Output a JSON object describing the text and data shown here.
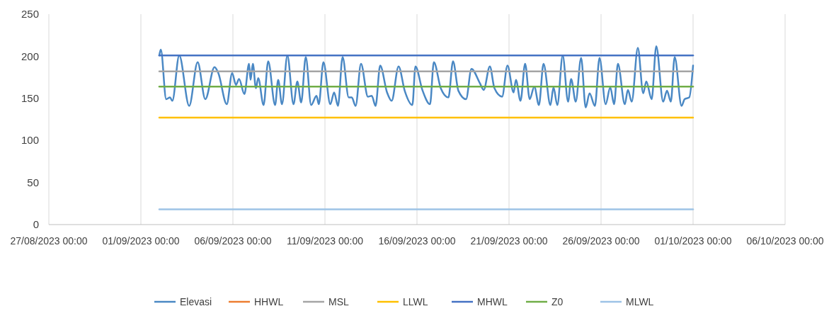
{
  "chart_data": {
    "type": "line",
    "xlim": [
      "2023-08-27",
      "2023-10-06"
    ],
    "xticks": [
      {
        "value": "2023-08-27",
        "label": "27/08/2023 00:00"
      },
      {
        "value": "2023-09-01",
        "label": "01/09/2023 00:00"
      },
      {
        "value": "2023-09-06",
        "label": "06/09/2023 00:00"
      },
      {
        "value": "2023-09-11",
        "label": "11/09/2023 00:00"
      },
      {
        "value": "2023-09-16",
        "label": "16/09/2023 00:00"
      },
      {
        "value": "2023-09-21",
        "label": "21/09/2023 00:00"
      },
      {
        "value": "2023-09-26",
        "label": "26/09/2023 00:00"
      },
      {
        "value": "2023-10-01",
        "label": "01/10/2023 00:00"
      },
      {
        "value": "2023-10-06",
        "label": "06/10/2023 00:00"
      }
    ],
    "ylim": [
      0,
      250
    ],
    "yticks": [
      0,
      50,
      100,
      150,
      200,
      250
    ],
    "grid": "x",
    "legend": "bottom",
    "series": [
      {
        "name": "Elevasi",
        "color": "#4a88c4",
        "x": [
          "2023-09-02T00:00",
          "2023-09-02T02:00",
          "2023-09-02T09:00",
          "2023-09-02T14:00",
          "2023-09-02T17:00",
          "2023-09-03T02:00",
          "2023-09-03T15:00",
          "2023-09-04T02:00",
          "2023-09-04T12:00",
          "2023-09-05T00:00",
          "2023-09-05T05:00",
          "2023-09-05T16:00",
          "2023-09-05T23:00",
          "2023-09-06T04:00",
          "2023-09-06T08:00",
          "2023-09-06T15:00",
          "2023-09-06T21:00",
          "2023-09-06T23:00",
          "2023-09-07T02:00",
          "2023-09-07T06:00",
          "2023-09-07T09:00",
          "2023-09-07T16:00",
          "2023-09-07T22:00",
          "2023-09-08T07:00",
          "2023-09-08T11:00",
          "2023-09-08T16:00",
          "2023-09-08T23:00",
          "2023-09-09T07:00",
          "2023-09-09T12:00",
          "2023-09-09T17:00",
          "2023-09-09T23:00",
          "2023-09-10T06:00",
          "2023-09-10T13:00",
          "2023-09-10T16:00",
          "2023-09-10T22:00",
          "2023-09-11T07:00",
          "2023-09-11T12:00",
          "2023-09-11T17:00",
          "2023-09-11T23:00",
          "2023-09-12T07:00",
          "2023-09-12T11:00",
          "2023-09-12T16:00",
          "2023-09-12T23:00",
          "2023-09-13T08:00",
          "2023-09-13T13:00",
          "2023-09-13T18:00",
          "2023-09-14T00:00",
          "2023-09-14T09:00",
          "2023-09-14T15:00",
          "2023-09-15T00:00",
          "2023-09-15T08:00",
          "2023-09-15T18:00",
          "2023-09-15T22:00",
          "2023-09-16T07:00",
          "2023-09-16T17:00",
          "2023-09-16T22:00",
          "2023-09-17T07:00",
          "2023-09-17T17:00",
          "2023-09-17T23:00",
          "2023-09-18T06:00",
          "2023-09-18T16:00",
          "2023-09-18T23:00",
          "2023-09-19T10:00",
          "2023-09-19T15:00",
          "2023-09-19T23:00",
          "2023-09-20T05:00",
          "2023-09-20T15:00",
          "2023-09-20T22:00",
          "2023-09-21T06:00",
          "2023-09-21T09:00",
          "2023-09-21T15:00",
          "2023-09-21T21:00",
          "2023-09-22T03:00",
          "2023-09-22T09:00",
          "2023-09-22T15:00",
          "2023-09-22T21:00",
          "2023-09-23T06:00",
          "2023-09-23T10:00",
          "2023-09-23T15:00",
          "2023-09-23T22:00",
          "2023-09-24T05:00",
          "2023-09-24T09:00",
          "2023-09-24T15:00",
          "2023-09-24T22:00",
          "2023-09-25T04:00",
          "2023-09-25T09:00",
          "2023-09-25T16:00",
          "2023-09-25T22:00",
          "2023-09-26T06:00",
          "2023-09-26T12:00",
          "2023-09-26T17:00",
          "2023-09-26T22:00",
          "2023-09-27T07:00",
          "2023-09-27T11:00",
          "2023-09-27T16:00",
          "2023-09-28T00:00",
          "2023-09-28T07:00",
          "2023-09-28T11:00",
          "2023-09-28T18:00",
          "2023-09-29T00:00",
          "2023-09-29T09:00",
          "2023-09-29T14:00",
          "2023-09-29T19:00",
          "2023-09-30T00:00",
          "2023-09-30T09:00",
          "2023-09-30T13:00",
          "2023-09-30T19:00",
          "2023-10-01T00:00"
        ],
        "values": [
          201,
          208,
          149,
          151,
          147,
          201,
          141,
          193,
          149,
          187,
          180,
          143,
          180,
          166,
          173,
          155,
          191,
          172,
          191,
          162,
          174,
          142,
          194,
          142,
          172,
          143,
          201,
          143,
          170,
          145,
          199,
          142,
          153,
          143,
          193,
          143,
          157,
          141,
          199,
          151,
          151,
          141,
          191,
          152,
          153,
          141,
          189,
          157,
          147,
          188,
          159,
          142,
          188,
          160,
          143,
          193,
          162,
          151,
          194,
          159,
          149,
          185,
          168,
          160,
          188,
          162,
          152,
          189,
          157,
          172,
          147,
          191,
          149,
          164,
          142,
          191,
          142,
          163,
          142,
          201,
          146,
          173,
          146,
          198,
          139,
          156,
          141,
          198,
          143,
          163,
          143,
          191,
          143,
          160,
          146,
          210,
          156,
          170,
          149,
          212,
          146,
          159,
          146,
          199,
          141,
          149,
          151,
          189
        ]
      },
      {
        "name": "HHWL",
        "color": "#ed7d31"
      },
      {
        "name": "MSL",
        "color": "#a5a5a5",
        "x": [
          "2023-09-02T00:00",
          "2023-10-01T00:00"
        ],
        "values": [
          182,
          182
        ]
      },
      {
        "name": "LLWL",
        "color": "#ffc000",
        "x": [
          "2023-09-02T00:00",
          "2023-10-01T00:00"
        ],
        "values": [
          127,
          127
        ]
      },
      {
        "name": "MHWL",
        "color": "#4472c4",
        "x": [
          "2023-09-02T00:00",
          "2023-10-01T00:00"
        ],
        "values": [
          201,
          201
        ]
      },
      {
        "name": "Z0",
        "color": "#70ad47",
        "x": [
          "2023-09-02T00:00",
          "2023-10-01T00:00"
        ],
        "values": [
          164,
          164
        ]
      },
      {
        "name": "MLWL",
        "color": "#9dc3e6",
        "x": [
          "2023-09-02T00:00",
          "2023-10-01T00:00"
        ],
        "values": [
          18,
          18
        ]
      }
    ]
  }
}
